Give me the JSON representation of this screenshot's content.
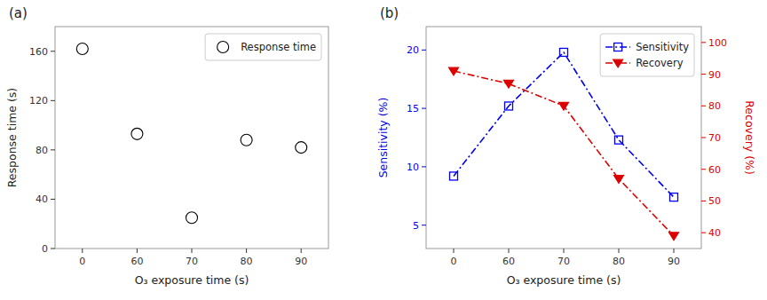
{
  "chart_data": [
    {
      "type": "scatter",
      "title": "(a)",
      "categories": [
        "0",
        "60",
        "70",
        "80",
        "90"
      ],
      "series": [
        {
          "name": "Response time",
          "color": "#000000",
          "marker": "circle-open",
          "values": [
            162,
            93,
            25,
            88,
            82
          ]
        }
      ],
      "x_label": "O₃ exposure time (s)",
      "y_label": "Response time (s)",
      "ylim": [
        0,
        180
      ],
      "yticks": [
        0,
        40,
        80,
        120,
        160
      ],
      "grid": false,
      "legend": "upper right"
    },
    {
      "type": "line",
      "title": "(b)",
      "categories": [
        "0",
        "60",
        "70",
        "80",
        "90"
      ],
      "series": [
        {
          "name": "Sensitivity",
          "color": "#0000ee",
          "marker": "square-open",
          "line_style": "dashdot",
          "values": [
            9.2,
            15.2,
            19.8,
            12.3,
            7.4
          ]
        },
        {
          "name": "Recovery",
          "color": "#dd0000",
          "marker": "triangle-down",
          "line_style": "dashdot",
          "axis": "y2",
          "values": [
            91,
            87,
            80,
            57,
            39
          ]
        }
      ],
      "x_label": "O₃ exposure time (s)",
      "y_label": "Sensitivity (%)",
      "y2_label": "Recovery (%)",
      "ylim": [
        3,
        22
      ],
      "yticks": [
        5,
        10,
        15,
        20
      ],
      "y2lim": [
        35,
        105
      ],
      "y2ticks": [
        40,
        50,
        60,
        70,
        80,
        90,
        100
      ],
      "grid": false,
      "legend": "upper right"
    }
  ]
}
